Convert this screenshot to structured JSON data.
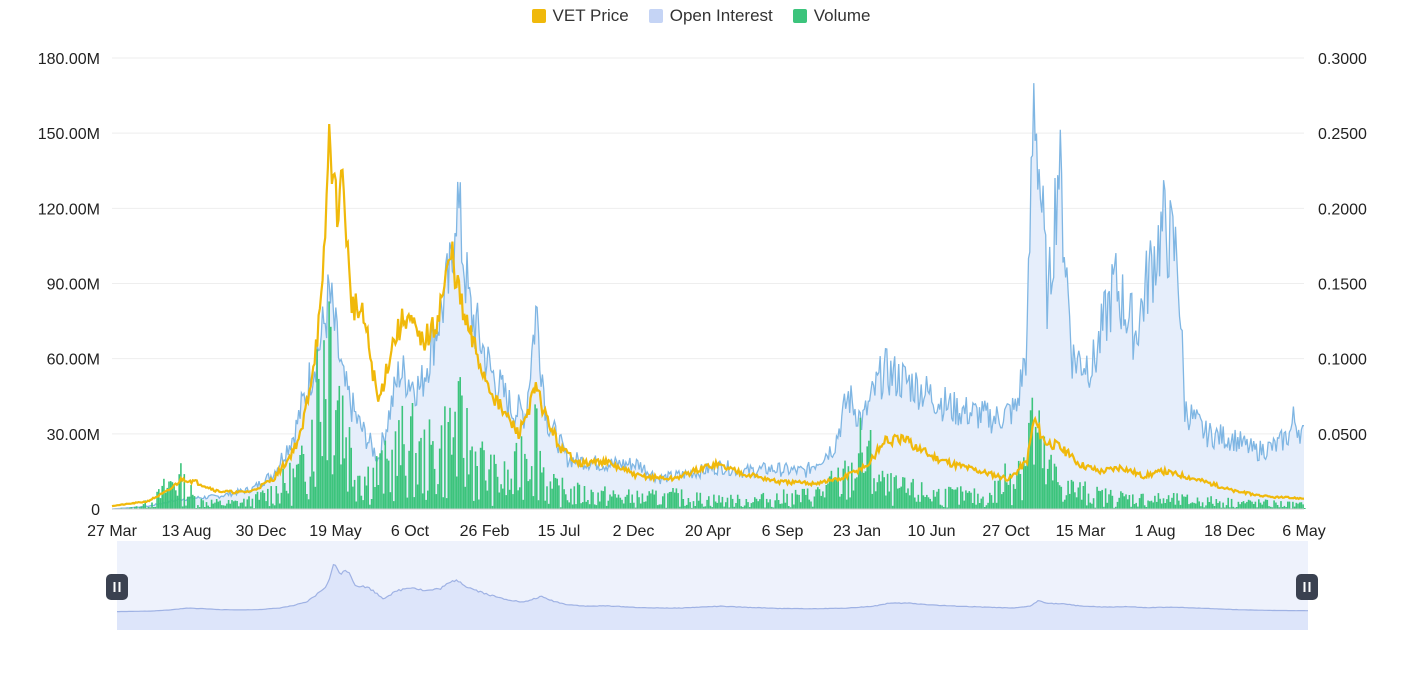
{
  "legend": [
    {
      "label": "VET Price",
      "color": "#f0b90b"
    },
    {
      "label": "Open Interest",
      "color": "#c5d4f5"
    },
    {
      "label": "Volume",
      "color": "#3cc47c"
    }
  ],
  "colors": {
    "price_line": "#f0b90b",
    "oi_line": "#7fb6e3",
    "oi_fill": "#e6eefb",
    "volume_bar": "#3cc47c",
    "grid": "#eeeeee",
    "navigator_fill": "#dde5fa",
    "navigator_line": "#9fb2e4",
    "handle": "#3a4150"
  },
  "slider": {
    "left_handle_icon": "pause-icon",
    "right_handle_icon": "pause-icon",
    "start_fraction": 0,
    "end_fraction": 1
  },
  "chart_data": {
    "type": "line",
    "title": "",
    "xlabel": "",
    "y_left_ticks": [
      "0",
      "30.00M",
      "60.00M",
      "90.00M",
      "120.00M",
      "150.00M",
      "180.00M"
    ],
    "y_right_ticks": [
      "0.0500",
      "0.1000",
      "0.1500",
      "0.2000",
      "0.2500",
      "0.3000"
    ],
    "x_ticks": [
      "27 Mar",
      "13 Aug",
      "30 Dec",
      "19 May",
      "6 Oct",
      "26 Feb",
      "15 Jul",
      "2 Dec",
      "20 Apr",
      "6 Sep",
      "23 Jan",
      "10 Jun",
      "27 Oct",
      "15 Mar",
      "1 Aug",
      "18 Dec",
      "6 May"
    ],
    "y_left_range": [
      0,
      180000000
    ],
    "y_right_range": [
      0,
      0.3
    ],
    "x_index_range": [
      0,
      16
    ],
    "grid": true,
    "legend_position": "top-center",
    "series": [
      {
        "name": "Open Interest",
        "axis": "left",
        "type": "area",
        "points": [
          [
            0,
            0
          ],
          [
            0.5,
            1000000
          ],
          [
            1,
            4000000
          ],
          [
            1.5,
            5000000
          ],
          [
            2,
            8000000
          ],
          [
            2.3,
            14000000
          ],
          [
            2.6,
            30000000
          ],
          [
            2.8,
            50000000
          ],
          [
            3,
            70000000
          ],
          [
            3.1,
            85000000
          ],
          [
            3.3,
            50000000
          ],
          [
            3.5,
            35000000
          ],
          [
            3.8,
            20000000
          ],
          [
            4.1,
            55000000
          ],
          [
            4.4,
            48000000
          ],
          [
            4.6,
            70000000
          ],
          [
            4.85,
            95000000
          ],
          [
            4.9,
            128000000
          ],
          [
            5.1,
            80000000
          ],
          [
            5.4,
            55000000
          ],
          [
            5.7,
            40000000
          ],
          [
            5.9,
            38000000
          ],
          [
            6.05,
            80000000
          ],
          [
            6.2,
            36000000
          ],
          [
            6.5,
            20000000
          ],
          [
            7,
            18000000
          ],
          [
            7.5,
            18000000
          ],
          [
            7.8,
            12000000
          ],
          [
            8.2,
            14000000
          ],
          [
            8.7,
            17000000
          ],
          [
            9,
            15000000
          ],
          [
            9.4,
            16000000
          ],
          [
            9.9,
            15000000
          ],
          [
            10.3,
            25000000
          ],
          [
            10.5,
            45000000
          ],
          [
            10.7,
            35000000
          ],
          [
            11,
            55000000
          ],
          [
            11.4,
            50000000
          ],
          [
            11.7,
            45000000
          ],
          [
            12,
            40000000
          ],
          [
            12.3,
            38000000
          ],
          [
            12.6,
            36000000
          ],
          [
            12.9,
            40000000
          ],
          [
            13.05,
            65000000
          ],
          [
            13.15,
            168000000
          ],
          [
            13.35,
            80000000
          ],
          [
            13.5,
            140000000
          ],
          [
            13.7,
            60000000
          ],
          [
            14,
            58000000
          ],
          [
            14.3,
            90000000
          ],
          [
            14.6,
            70000000
          ],
          [
            14.8,
            95000000
          ],
          [
            15,
            113000000
          ],
          [
            15.2,
            100000000
          ],
          [
            15.3,
            40000000
          ],
          [
            15.6,
            30000000
          ],
          [
            16,
            28000000
          ],
          [
            16.3,
            23000000
          ],
          [
            16.6,
            25000000
          ],
          [
            16.8,
            30000000
          ],
          [
            16.85,
            36000000
          ],
          [
            17,
            29000000
          ]
        ]
      },
      {
        "name": "Volume",
        "axis": "left",
        "type": "bar",
        "points": [
          [
            0,
            0
          ],
          [
            0.3,
            500000
          ],
          [
            0.6,
            3000000
          ],
          [
            0.9,
            12000000
          ],
          [
            1.2,
            3000000
          ],
          [
            1.6,
            2000000
          ],
          [
            2,
            3000000
          ],
          [
            2.4,
            8000000
          ],
          [
            2.7,
            14000000
          ],
          [
            2.9,
            40000000
          ],
          [
            3.0,
            60000000
          ],
          [
            3.1,
            70000000
          ],
          [
            3.25,
            40000000
          ],
          [
            3.4,
            20000000
          ],
          [
            3.6,
            12000000
          ],
          [
            3.9,
            15000000
          ],
          [
            4.2,
            25000000
          ],
          [
            4.4,
            18000000
          ],
          [
            4.6,
            20000000
          ],
          [
            4.9,
            30000000
          ],
          [
            5.1,
            22000000
          ],
          [
            5.4,
            12000000
          ],
          [
            5.7,
            10000000
          ],
          [
            6.0,
            32000000
          ],
          [
            6.2,
            8000000
          ],
          [
            6.5,
            6000000
          ],
          [
            7,
            5000000
          ],
          [
            7.5,
            4000000
          ],
          [
            8,
            4500000
          ],
          [
            8.5,
            3500000
          ],
          [
            9,
            3000000
          ],
          [
            9.5,
            4000000
          ],
          [
            10,
            5000000
          ],
          [
            10.5,
            12000000
          ],
          [
            10.7,
            22000000
          ],
          [
            11,
            8000000
          ],
          [
            11.5,
            6000000
          ],
          [
            12,
            5000000
          ],
          [
            12.5,
            4000000
          ],
          [
            13,
            20000000
          ],
          [
            13.1,
            32000000
          ],
          [
            13.3,
            15000000
          ],
          [
            13.6,
            8000000
          ],
          [
            14,
            5000000
          ],
          [
            14.5,
            4000000
          ],
          [
            15,
            3500000
          ],
          [
            15.5,
            3000000
          ],
          [
            16,
            2500000
          ],
          [
            16.5,
            2000000
          ],
          [
            17,
            1500000
          ]
        ]
      },
      {
        "name": "VET Price",
        "axis": "right",
        "type": "line",
        "points": [
          [
            0,
            0.002
          ],
          [
            0.5,
            0.005
          ],
          [
            0.8,
            0.012
          ],
          [
            1,
            0.02
          ],
          [
            1.2,
            0.018
          ],
          [
            1.5,
            0.012
          ],
          [
            1.8,
            0.011
          ],
          [
            2,
            0.012
          ],
          [
            2.3,
            0.02
          ],
          [
            2.5,
            0.032
          ],
          [
            2.7,
            0.05
          ],
          [
            2.85,
            0.09
          ],
          [
            3,
            0.14
          ],
          [
            3.1,
            0.25
          ],
          [
            3.2,
            0.2
          ],
          [
            3.3,
            0.22
          ],
          [
            3.4,
            0.14
          ],
          [
            3.6,
            0.125
          ],
          [
            3.8,
            0.07
          ],
          [
            4.0,
            0.11
          ],
          [
            4.2,
            0.13
          ],
          [
            4.4,
            0.11
          ],
          [
            4.6,
            0.12
          ],
          [
            4.85,
            0.17
          ],
          [
            5.0,
            0.13
          ],
          [
            5.3,
            0.09
          ],
          [
            5.5,
            0.07
          ],
          [
            5.8,
            0.05
          ],
          [
            6.05,
            0.08
          ],
          [
            6.2,
            0.06
          ],
          [
            6.4,
            0.04
          ],
          [
            6.7,
            0.03
          ],
          [
            7,
            0.032
          ],
          [
            7.5,
            0.022
          ],
          [
            8,
            0.02
          ],
          [
            8.3,
            0.025
          ],
          [
            8.6,
            0.03
          ],
          [
            9,
            0.024
          ],
          [
            9.5,
            0.018
          ],
          [
            10,
            0.017
          ],
          [
            10.4,
            0.02
          ],
          [
            10.8,
            0.03
          ],
          [
            11,
            0.045
          ],
          [
            11.3,
            0.046
          ],
          [
            11.7,
            0.035
          ],
          [
            12,
            0.03
          ],
          [
            12.4,
            0.025
          ],
          [
            12.8,
            0.02
          ],
          [
            13.05,
            0.032
          ],
          [
            13.15,
            0.06
          ],
          [
            13.3,
            0.045
          ],
          [
            13.5,
            0.042
          ],
          [
            13.8,
            0.03
          ],
          [
            14.1,
            0.025
          ],
          [
            14.4,
            0.028
          ],
          [
            14.7,
            0.022
          ],
          [
            15,
            0.025
          ],
          [
            15.3,
            0.022
          ],
          [
            15.6,
            0.018
          ],
          [
            16,
            0.012
          ],
          [
            16.5,
            0.008
          ],
          [
            17,
            0.007
          ]
        ]
      }
    ]
  }
}
